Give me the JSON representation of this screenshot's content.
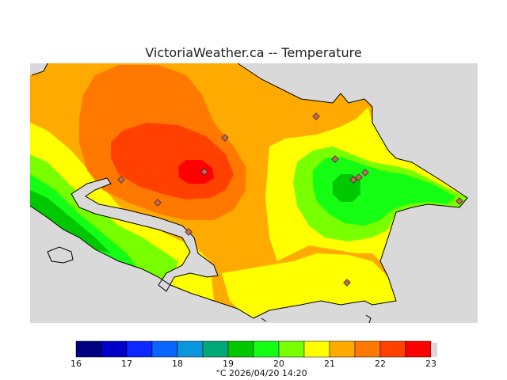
{
  "title": "VictoriaWeather.ca -- Temperature",
  "colors": {
    "background": "#d9d9d9",
    "c16_17": "#000080",
    "c17_18": "#0000c8",
    "c18_19": "#0a28ff",
    "c19_20": "#0a78ff",
    "c20_21": "#0a96dc",
    "c21_22": "#00aa78",
    "c22_23": "#00c800",
    "c23_24": "#14ff14",
    "c24_25": "#78ff00",
    "c25_26": "#ffff00",
    "c26_27": "#ffaa00",
    "c27_28": "#ff7800",
    "c28_29": "#ff4000",
    "c29_30": "#ff0000"
  },
  "scale": {
    "labels": [
      "16",
      "17",
      "18",
      "19",
      "20",
      "21",
      "22",
      "23"
    ],
    "caption": "°C  2026/04/20 14:20"
  },
  "stations": [
    {
      "name": "station-marker"
    }
  ]
}
